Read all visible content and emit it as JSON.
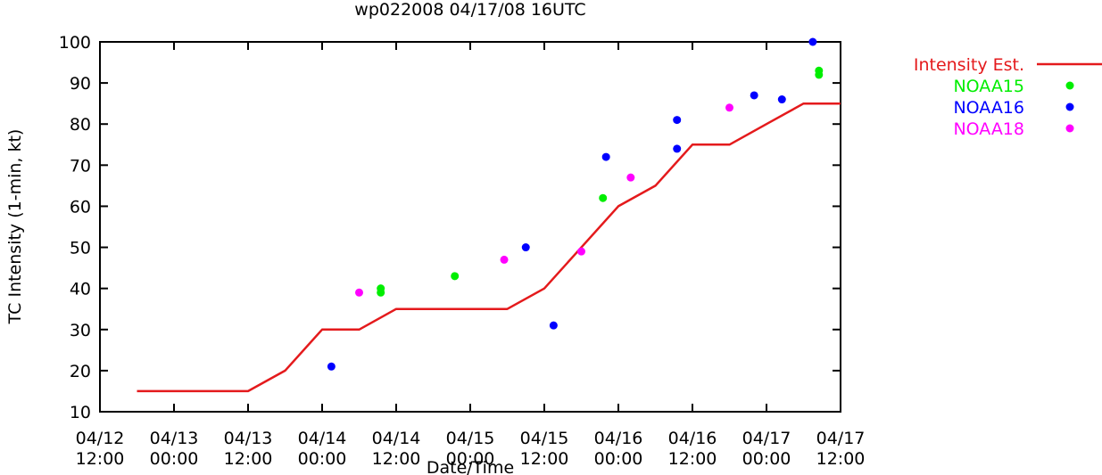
{
  "chart_data": {
    "type": "line",
    "title": "wp022008 04/17/08 16UTC",
    "xlabel": "Date/Time",
    "ylabel": "TC Intensity (1-min, kt)",
    "x_unit": "hours since 04/12 12:00",
    "xlim": [
      0,
      120
    ],
    "ylim": [
      10,
      100
    ],
    "grid": false,
    "legend_position": "top-right (outside plot)",
    "x_ticks": [
      {
        "x": 0,
        "line1": "04/12",
        "line2": "12:00"
      },
      {
        "x": 12,
        "line1": "04/13",
        "line2": "00:00"
      },
      {
        "x": 24,
        "line1": "04/13",
        "line2": "12:00"
      },
      {
        "x": 36,
        "line1": "04/14",
        "line2": "00:00"
      },
      {
        "x": 48,
        "line1": "04/14",
        "line2": "12:00"
      },
      {
        "x": 60,
        "line1": "04/15",
        "line2": "00:00"
      },
      {
        "x": 72,
        "line1": "04/15",
        "line2": "12:00"
      },
      {
        "x": 84,
        "line1": "04/16",
        "line2": "00:00"
      },
      {
        "x": 96,
        "line1": "04/16",
        "line2": "12:00"
      },
      {
        "x": 108,
        "line1": "04/17",
        "line2": "00:00"
      },
      {
        "x": 120,
        "line1": "04/17",
        "line2": "12:00"
      }
    ],
    "y_ticks": [
      "10",
      "20",
      "30",
      "40",
      "50",
      "60",
      "70",
      "80",
      "90",
      "100"
    ],
    "series": [
      {
        "name": "Intensity Est.",
        "kind": "line",
        "color": "#e41a1c",
        "points": [
          [
            6,
            15
          ],
          [
            24,
            15
          ],
          [
            30,
            20
          ],
          [
            36,
            30
          ],
          [
            42,
            30
          ],
          [
            48,
            35
          ],
          [
            66,
            35
          ],
          [
            72,
            40
          ],
          [
            78,
            50
          ],
          [
            84,
            60
          ],
          [
            90,
            65
          ],
          [
            96,
            75
          ],
          [
            102,
            75
          ],
          [
            108,
            80
          ],
          [
            114,
            85
          ],
          [
            120,
            85
          ]
        ]
      },
      {
        "name": "NOAA15",
        "kind": "scatter",
        "color": "#00ee00",
        "points": [
          [
            45.5,
            40
          ],
          [
            45.5,
            39
          ],
          [
            57.5,
            43
          ],
          [
            81.5,
            62
          ],
          [
            116.5,
            93
          ],
          [
            116.5,
            92
          ]
        ]
      },
      {
        "name": "NOAA16",
        "kind": "scatter",
        "color": "#0000ff",
        "points": [
          [
            37.5,
            21
          ],
          [
            69,
            50
          ],
          [
            73.5,
            31
          ],
          [
            82,
            72
          ],
          [
            93.5,
            81
          ],
          [
            93.5,
            74
          ],
          [
            106,
            87
          ],
          [
            110.5,
            86
          ],
          [
            115.5,
            100
          ]
        ]
      },
      {
        "name": "NOAA18",
        "kind": "scatter",
        "color": "#ff00ff",
        "points": [
          [
            42,
            39
          ],
          [
            65.5,
            47
          ],
          [
            78,
            49
          ],
          [
            86,
            67
          ],
          [
            102,
            84
          ]
        ]
      }
    ]
  }
}
